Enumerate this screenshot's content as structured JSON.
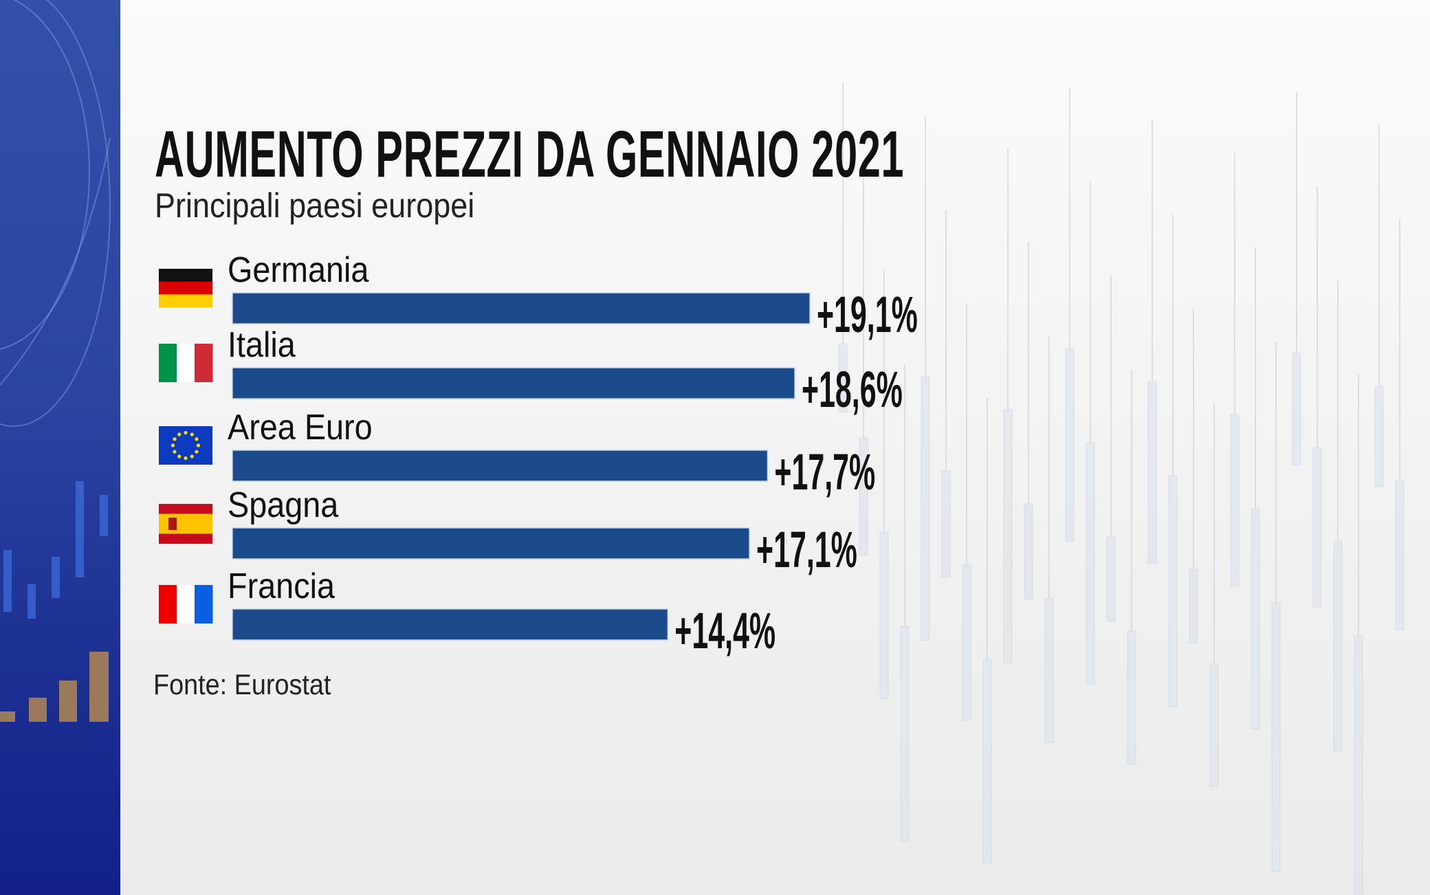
{
  "chart_data": {
    "type": "bar",
    "orientation": "horizontal",
    "title": "AUMENTO PREZZI DA GENNAIO 2021",
    "subtitle": "Principali paesi europei",
    "source": "Fonte: Eurostat",
    "categories": [
      "Germania",
      "Italia",
      "Area Euro",
      "Spagna",
      "Francia"
    ],
    "values": [
      19.1,
      18.6,
      17.7,
      17.1,
      14.4
    ],
    "data_labels": [
      "+19,1%",
      "+18,6%",
      "+17,7%",
      "+17,1%",
      "+14,4%"
    ],
    "flags": [
      "germany-flag",
      "italy-flag",
      "eu-flag",
      "spain-flag",
      "france-flag"
    ],
    "xlim": [
      0,
      19.1
    ],
    "grid": false,
    "bar_color": "#1a4a8a"
  }
}
